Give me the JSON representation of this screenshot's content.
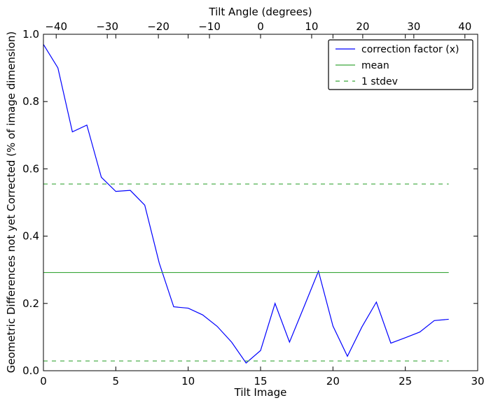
{
  "chart_data": {
    "type": "line",
    "xlabel": "Tilt Image",
    "ylabel": "Geometric Differences not yet Corrected (% of image dimension)",
    "top_xlabel": "Tilt Angle (degrees)",
    "xlim": [
      0,
      30
    ],
    "ylim": [
      0,
      1.0
    ],
    "xticks": [
      0,
      5,
      10,
      15,
      20,
      25,
      30
    ],
    "yticks": [
      0.0,
      0.2,
      0.4,
      0.6,
      0.8,
      1.0
    ],
    "top_xlim": [
      -42.5,
      42.5
    ],
    "top_xticks": [
      -40,
      -30,
      -20,
      -10,
      0,
      10,
      20,
      30,
      40
    ],
    "top_xtick_labels": [
      "−40",
      "−30",
      "−20",
      "−10",
      "0",
      "10",
      "20",
      "30",
      "40"
    ],
    "grid": false,
    "legend_position": "top-right",
    "series": [
      {
        "name": "correction factor (x)",
        "color": "#0000ff",
        "style": "solid",
        "x": [
          0,
          1,
          2,
          3,
          4,
          5,
          6,
          7,
          8,
          9,
          10,
          11,
          12,
          13,
          14,
          15,
          16,
          17,
          18,
          19,
          20,
          21,
          22,
          23,
          24,
          25,
          26,
          27,
          28
        ],
        "y": [
          0.97,
          0.9,
          0.71,
          0.73,
          0.575,
          0.533,
          0.536,
          0.492,
          0.32,
          0.19,
          0.186,
          0.166,
          0.132,
          0.085,
          0.023,
          0.06,
          0.2,
          0.085,
          0.19,
          0.296,
          0.133,
          0.043,
          0.13,
          0.204,
          0.082,
          0.098,
          0.115,
          0.149,
          0.153
        ]
      },
      {
        "name": "mean",
        "color": "#3aa63a",
        "style": "solid",
        "x": [
          0,
          28
        ],
        "y": [
          0.292,
          0.292
        ]
      },
      {
        "name": "1 stdev",
        "color": "#3aa63a",
        "style": "dashed",
        "x": [
          0,
          28
        ],
        "y": [
          0.555,
          0.555
        ]
      },
      {
        "name": "",
        "color": "#3aa63a",
        "style": "dashed",
        "x": [
          0,
          28
        ],
        "y": [
          0.029,
          0.029
        ]
      }
    ]
  }
}
